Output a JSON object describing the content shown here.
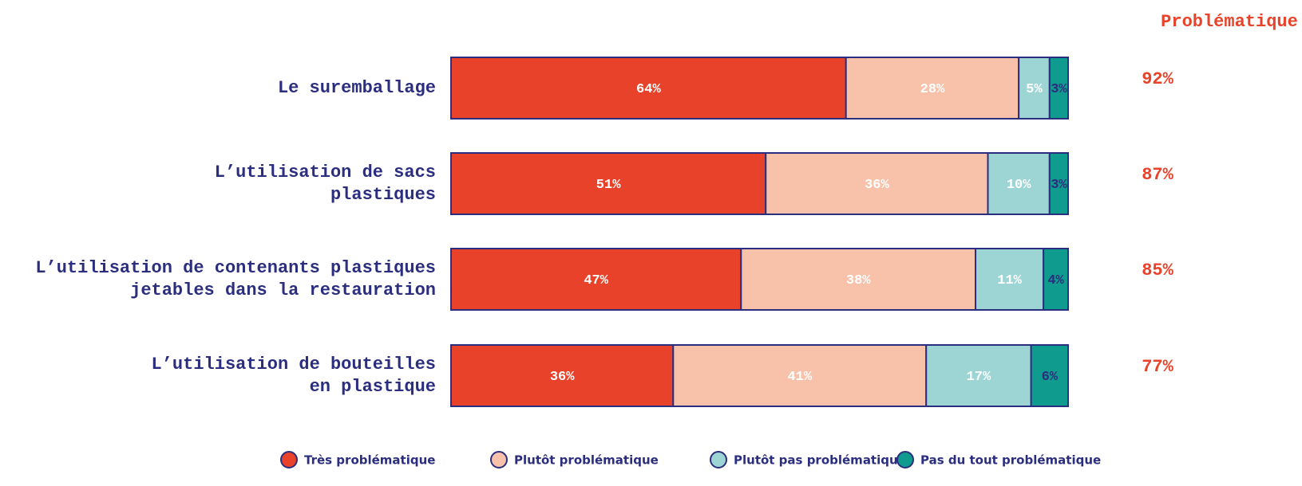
{
  "chart_data": {
    "type": "stacked-bar-horizontal",
    "categories": [
      "Le suremballage",
      "L’utilisation de sacs\nplastiques",
      "L’utilisation de contenants plastiques\njetables dans la restauration",
      "L’utilisation de bouteilles\nen plastique"
    ],
    "series": [
      {
        "name": "Très problématique",
        "color": "#e8432a",
        "label_color": "#ffffff",
        "values": [
          64,
          51,
          47,
          36
        ],
        "value_labels": [
          "64%",
          "51%",
          "47%",
          "36%"
        ]
      },
      {
        "name": "Plutôt problématique",
        "color": "#f8c1a9",
        "label_color": "#ffffff",
        "values": [
          28,
          36,
          38,
          41
        ],
        "value_labels": [
          "28%",
          "36%",
          "38%",
          "41%"
        ]
      },
      {
        "name": "Plutôt pas problématique",
        "color": "#9dd4d4",
        "label_color": "#ffffff",
        "values": [
          5,
          10,
          11,
          17
        ],
        "value_labels": [
          "5%",
          "10%",
          "11%",
          "17%"
        ]
      },
      {
        "name": "Pas du tout problématique",
        "color": "#0f9b8e",
        "label_color": "#2b2e7e",
        "values": [
          3,
          3,
          4,
          6
        ],
        "value_labels": [
          "3%",
          "3%",
          "4%",
          "6%"
        ]
      }
    ],
    "xlim": [
      0,
      100
    ],
    "totals": {
      "title": "Problématique",
      "color": "#e8432a",
      "values": [
        92,
        87,
        85,
        77
      ],
      "value_labels": [
        "92%",
        "87%",
        "85%",
        "77%"
      ]
    }
  }
}
